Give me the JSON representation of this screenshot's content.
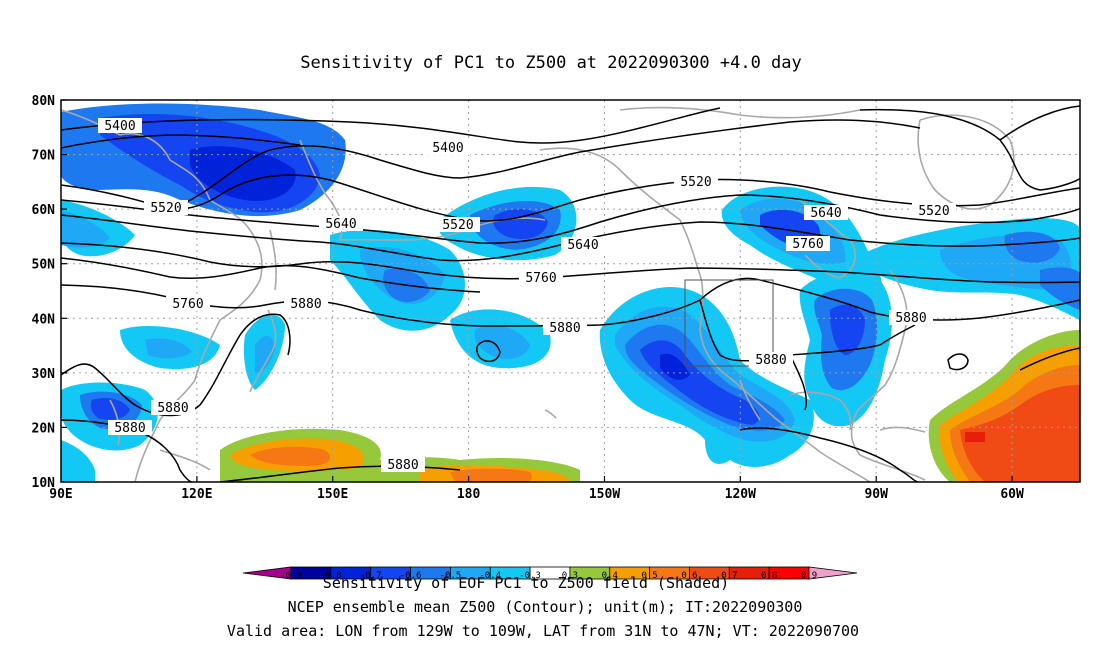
{
  "title": "Sensitivity of PC1 to Z500 at 2022090300 +4.0 day",
  "map": {
    "lat_labels": [
      "80N",
      "70N",
      "60N",
      "50N",
      "40N",
      "30N",
      "20N",
      "10N"
    ],
    "lon_labels": [
      "90E",
      "120E",
      "150E",
      "180",
      "150W",
      "120W",
      "90W",
      "60W"
    ],
    "lon_range": [
      "90E",
      "45W"
    ],
    "lat_range": [
      "10N",
      "80N"
    ],
    "grid": "dotted",
    "box": {
      "lon_from": "129W",
      "lon_to": "109W",
      "lat_from": "31N",
      "lat_to": "47N"
    }
  },
  "contours": {
    "unit": "m",
    "labels": [
      {
        "text": "5400"
      },
      {
        "text": "5400"
      },
      {
        "text": "5520"
      },
      {
        "text": "5520"
      },
      {
        "text": "5520"
      },
      {
        "text": "5520"
      },
      {
        "text": "5640"
      },
      {
        "text": "5640"
      },
      {
        "text": "5640"
      },
      {
        "text": "5760"
      },
      {
        "text": "5760"
      },
      {
        "text": "5760"
      },
      {
        "text": "5880"
      },
      {
        "text": "5880"
      },
      {
        "text": "5880"
      },
      {
        "text": "5880"
      },
      {
        "text": "5880"
      },
      {
        "text": "5880"
      },
      {
        "text": "5880"
      }
    ]
  },
  "colorbar": {
    "labels": [
      "-0.9",
      "-0.8",
      "-0.7",
      "-0.6",
      "-0.5",
      "-0.4",
      "-0.3",
      "0.3",
      "0.4",
      "0.5",
      "0.6",
      "0.7",
      "0.8",
      "0.9"
    ],
    "colors": [
      "#a3008f",
      "#0000a0",
      "#0022d8",
      "#1445f0",
      "#1e78f0",
      "#1ea8f5",
      "#14c8f5",
      "#ffffff",
      "#96c83c",
      "#f5a000",
      "#f57814",
      "#f04b14",
      "#e61e0a",
      "#ff0000",
      "#f0a0c8"
    ]
  },
  "footer": {
    "line1": "Sensitivity of EOF PC1 to Z500 field (Shaded)",
    "line2": "NCEP ensemble mean Z500 (Contour); unit(m); IT:2022090300",
    "line3": "Valid area: LON from 129W to 109W, LAT from 31N to 47N; VT: 2022090700"
  }
}
